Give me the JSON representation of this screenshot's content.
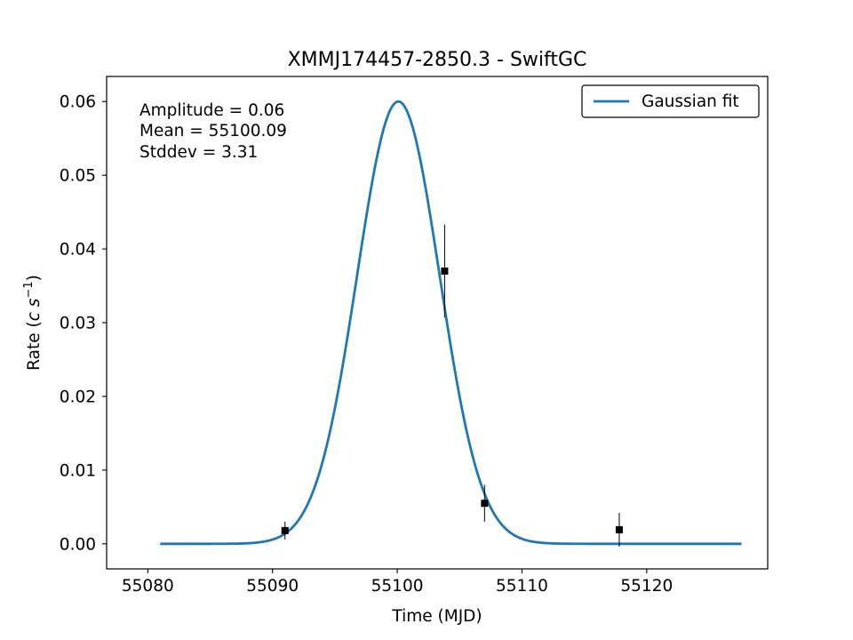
{
  "chart_data": {
    "type": "scatter",
    "title": "XMMJ174457-2850.3 - SwiftGC",
    "xlabel": "Time (MJD)",
    "ylabel_prefix": "Rate (",
    "ylabel_unit_c": "c",
    "ylabel_unit_s": "s",
    "ylabel_exponent": "−1",
    "ylabel_suffix": ")",
    "xlim": [
      55076.7,
      55129.7
    ],
    "ylim": [
      -0.0034,
      0.0634
    ],
    "xticks": [
      55080,
      55090,
      55100,
      55110,
      55120
    ],
    "yticks": [
      0.0,
      0.01,
      0.02,
      0.03,
      0.04,
      0.05,
      0.06
    ],
    "xtick_labels": [
      "55080",
      "55090",
      "55100",
      "55110",
      "55120"
    ],
    "ytick_labels": [
      "0.00",
      "0.01",
      "0.02",
      "0.03",
      "0.04",
      "0.05",
      "0.06"
    ],
    "grid": false,
    "legend_position": "top-right",
    "series": [
      {
        "name": "Gaussian fit",
        "kind": "line",
        "color": "#1f77b4",
        "model": "gaussian",
        "amplitude": 0.06,
        "mean": 55100.09,
        "stddev": 3.31,
        "x_start": 55081.0,
        "x_end": 55127.6
      },
      {
        "kind": "errorbar",
        "color": "#000000",
        "marker": "square",
        "points": [
          {
            "x": 55091.0,
            "y": 0.0018,
            "yerr": 0.0012
          },
          {
            "x": 55103.8,
            "y": 0.037,
            "yerr": 0.0063
          },
          {
            "x": 55107.0,
            "y": 0.0055,
            "yerr": 0.0025
          },
          {
            "x": 55117.8,
            "y": 0.0019,
            "yerr": 0.0023
          }
        ]
      }
    ],
    "annotations": [
      "Amplitude = 0.06",
      "Mean = 55100.09",
      "Stddev = 3.31"
    ]
  }
}
